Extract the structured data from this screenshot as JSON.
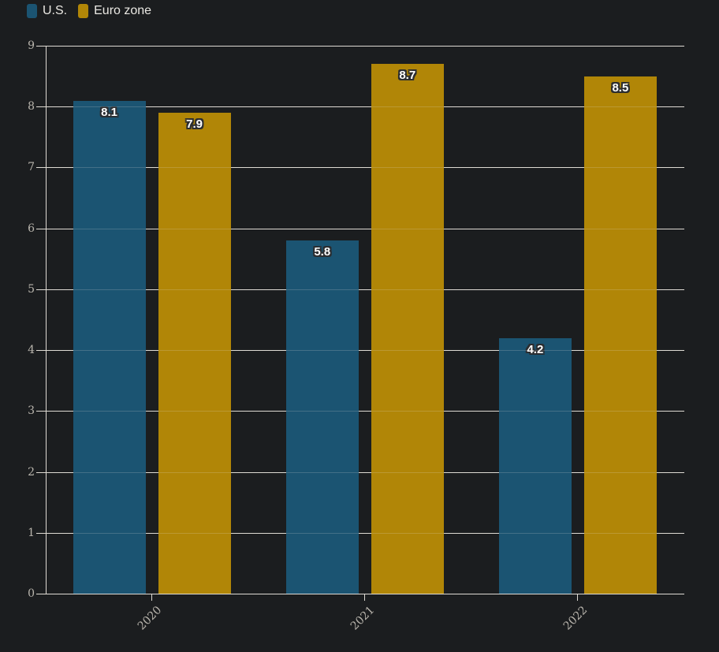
{
  "legend": {
    "position": "top-left",
    "items": [
      {
        "label": "U.S.",
        "color": "#1b5472"
      },
      {
        "label": "Euro zone",
        "color": "#b18607"
      }
    ]
  },
  "chart_data": {
    "type": "bar",
    "title": "",
    "xlabel": "",
    "ylabel": "",
    "categories": [
      "2020",
      "2021",
      "2022"
    ],
    "series": [
      {
        "name": "U.S.",
        "color": "#1b5472",
        "values": [
          8.1,
          5.8,
          4.2
        ]
      },
      {
        "name": "Euro zone",
        "color": "#b18607",
        "values": [
          7.9,
          8.7,
          8.5
        ]
      }
    ],
    "bar_value_labels": [
      [
        "8.1",
        "5.8",
        "4.2"
      ],
      [
        "7.9",
        "8.7",
        "8.5"
      ]
    ],
    "ylim": [
      0,
      9
    ],
    "yticks": [
      0,
      1,
      2,
      3,
      4,
      5,
      6,
      7,
      8,
      9
    ],
    "grid": true,
    "legend_position": "top-left"
  },
  "style": {
    "background": "#1b1d1f",
    "grid_color": "#dedad3",
    "tick_label_color": "#b9b5ad",
    "legend_text_color": "#eae8e3",
    "bar_label_color": "#ffffff",
    "bar_label_outline": "#2b2d30"
  }
}
